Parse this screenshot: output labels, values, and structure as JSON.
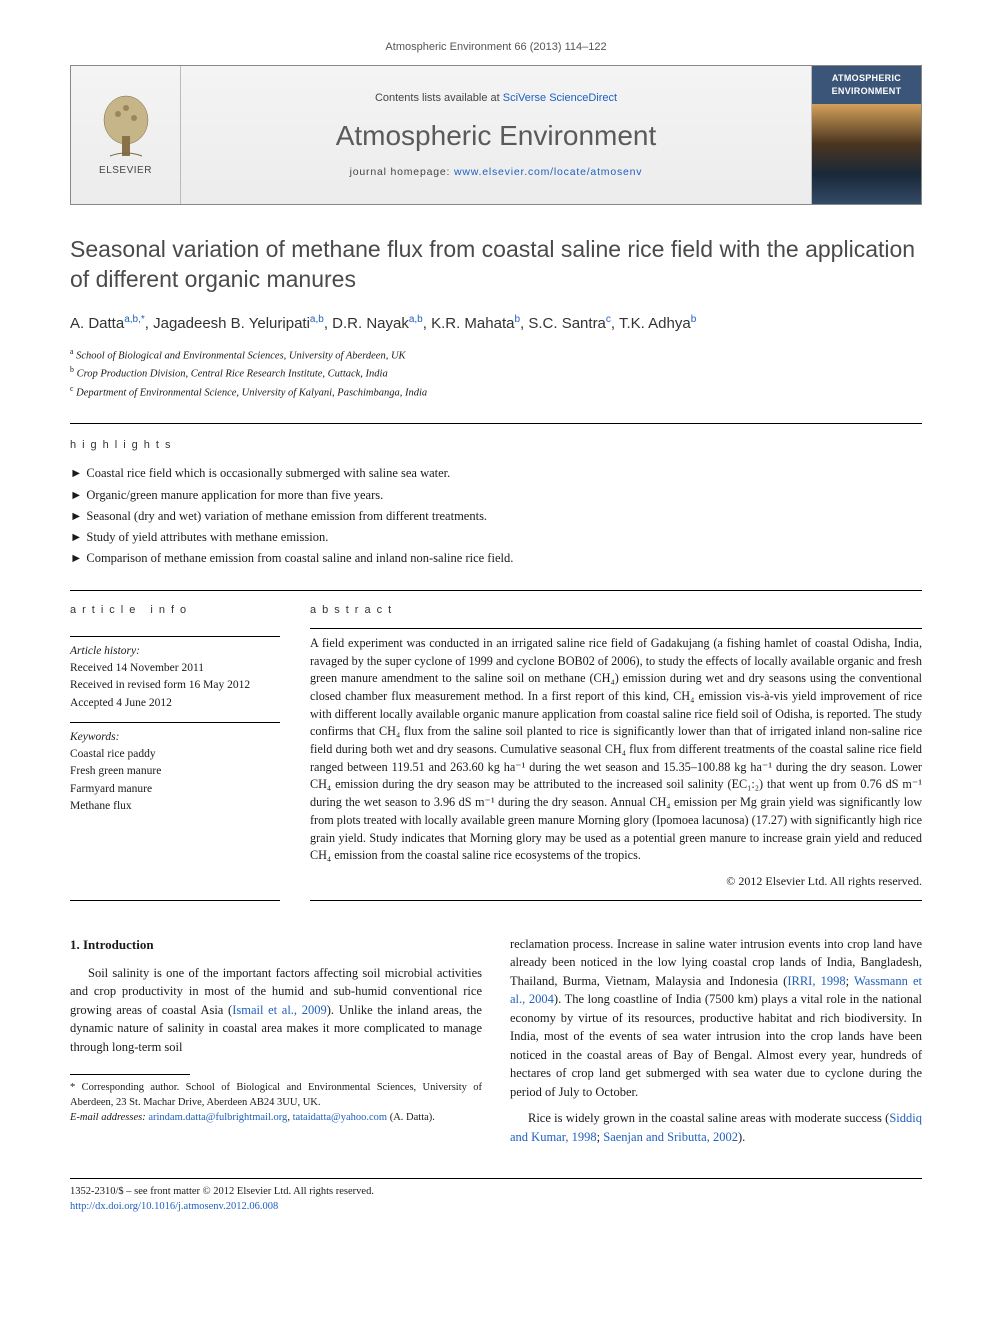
{
  "running_head": "Atmospheric Environment 66 (2013) 114–122",
  "masthead": {
    "publisher": "ELSEVIER",
    "contents_prefix": "Contents lists available at ",
    "contents_link": "SciVerse ScienceDirect",
    "journal": "Atmospheric Environment",
    "homepage_prefix": "journal homepage: ",
    "homepage_url": "www.elsevier.com/locate/atmosenv",
    "cover_title": "ATMOSPHERIC ENVIRONMENT"
  },
  "title": "Seasonal variation of methane flux from coastal saline rice field with the application of different organic manures",
  "authors_html": "A. Datta<sup>a,b,*</sup>, Jagadeesh B. Yeluripati<sup>a,b</sup>, D.R. Nayak<sup>a,b</sup>, K.R. Mahata<sup>b</sup>, S.C. Santra<sup>c</sup>, T.K. Adhya<sup>b</sup>",
  "affiliations": [
    {
      "sup": "a",
      "text": "School of Biological and Environmental Sciences, University of Aberdeen, UK"
    },
    {
      "sup": "b",
      "text": "Crop Production Division, Central Rice Research Institute, Cuttack, India"
    },
    {
      "sup": "c",
      "text": "Department of Environmental Science, University of Kalyani, Paschimbanga, India"
    }
  ],
  "highlights": {
    "heading": "highlights",
    "items": [
      "Coastal rice field which is occasionally submerged with saline sea water.",
      "Organic/green manure application for more than five years.",
      "Seasonal (dry and wet) variation of methane emission from different treatments.",
      "Study of yield attributes with methane emission.",
      "Comparison of methane emission from coastal saline and inland non-saline rice field."
    ]
  },
  "article_info": {
    "heading": "article info",
    "history_label": "Article history:",
    "received": "Received 14 November 2011",
    "revised": "Received in revised form 16 May 2012",
    "accepted": "Accepted 4 June 2012",
    "keywords_label": "Keywords:",
    "keywords": [
      "Coastal rice paddy",
      "Fresh green manure",
      "Farmyard manure",
      "Methane flux"
    ]
  },
  "abstract": {
    "heading": "abstract",
    "body": "A field experiment was conducted in an irrigated saline rice field of Gadakujang (a fishing hamlet of coastal Odisha, India, ravaged by the super cyclone of 1999 and cyclone BOB02 of 2006), to study the effects of locally available organic and fresh green manure amendment to the saline soil on methane (CH₄) emission during wet and dry seasons using the conventional closed chamber flux measurement method. In a first report of this kind, CH₄ emission vis-à-vis yield improvement of rice with different locally available organic manure application from coastal saline rice field soil of Odisha, is reported. The study confirms that CH₄ flux from the saline soil planted to rice is significantly lower than that of irrigated inland non-saline rice field during both wet and dry seasons. Cumulative seasonal CH₄ flux from different treatments of the coastal saline rice field ranged between 119.51 and 263.60 kg ha⁻¹ during the wet season and 15.35–100.88 kg ha⁻¹ during the dry season. Lower CH₄ emission during the dry season may be attributed to the increased soil salinity (EC₁:₂) that went up from 0.76 dS m⁻¹ during the wet season to 3.96 dS m⁻¹ during the dry season. Annual CH₄ emission per Mg grain yield was significantly low from plots treated with locally available green manure Morning glory (Ipomoea lacunosa) (17.27) with significantly high rice grain yield. Study indicates that Morning glory may be used as a potential green manure to increase grain yield and reduced CH₄ emission from the coastal saline rice ecosystems of the tropics.",
    "copyright": "© 2012 Elsevier Ltd. All rights reserved."
  },
  "intro": {
    "heading": "1. Introduction",
    "para1_pre": "Soil salinity is one of the important factors affecting soil microbial activities and crop productivity in most of the humid and sub-humid conventional rice growing areas of coastal Asia (",
    "para1_cite1": "Ismail et al., 2009",
    "para1_post": "). Unlike the inland areas, the dynamic nature of salinity in coastal area makes it more complicated to manage through long-term soil",
    "para2_pre": "reclamation process. Increase in saline water intrusion events into crop land have already been noticed in the low lying coastal crop lands of India, Bangladesh, Thailand, Burma, Vietnam, Malaysia and Indonesia (",
    "para2_cite1": "IRRI, 1998",
    "para2_sep": "; ",
    "para2_cite2": "Wassmann et al., 2004",
    "para2_post": "). The long coastline of India (7500 km) plays a vital role in the national economy by virtue of its resources, productive habitat and rich biodiversity. In India, most of the events of sea water intrusion into the crop lands have been noticed in the coastal areas of Bay of Bengal. Almost every year, hundreds of hectares of crop land get submerged with sea water due to cyclone during the period of July to October.",
    "para3_pre": "Rice is widely grown in the coastal saline areas with moderate success (",
    "para3_cite1": "Siddiq and Kumar, 1998",
    "para3_sep": "; ",
    "para3_cite2": "Saenjan and Sributta, 2002",
    "para3_post": ")."
  },
  "footnotes": {
    "corr_label": "* Corresponding author.",
    "corr_text": " School of Biological and Environmental Sciences, University of Aberdeen, 23 St. Machar Drive, Aberdeen AB24 3UU, UK.",
    "email_label": "E-mail addresses:",
    "email1": "arindam.datta@fulbrightmail.org",
    "email_sep": ", ",
    "email2": "tataidatta@yahoo.com",
    "email_tail": " (A. Datta)."
  },
  "footer": {
    "left_line1": "1352-2310/$ – see front matter © 2012 Elsevier Ltd. All rights reserved.",
    "left_line2": "http://dx.doi.org/10.1016/j.atmosenv.2012.06.008"
  },
  "colors": {
    "link": "#2060c0",
    "text": "#1a1a1a",
    "heading_gray": "#4a4a4a",
    "cover_bg": "#3b5578"
  }
}
